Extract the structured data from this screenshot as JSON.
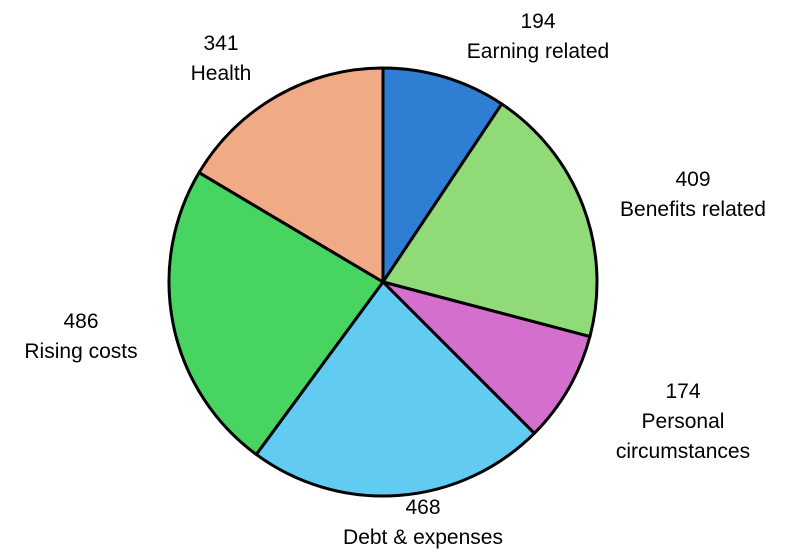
{
  "chart_data": {
    "type": "pie",
    "title": "",
    "slices": [
      {
        "label": "Earning related",
        "value": 194,
        "color": "#2e7fd4"
      },
      {
        "label": "Benefits related",
        "value": 409,
        "color": "#90db78"
      },
      {
        "label": "Personal circumstances",
        "value": 174,
        "color": "#d56fcd"
      },
      {
        "label": "Debt & expenses",
        "value": 468,
        "color": "#62cbf1"
      },
      {
        "label": "Rising costs",
        "value": 486,
        "color": "#48d461"
      },
      {
        "label": "Health",
        "value": 341,
        "color": "#f0aa85"
      }
    ],
    "start_angle": "12 o'clock",
    "direction": "clockwise",
    "labels_outside": true
  }
}
